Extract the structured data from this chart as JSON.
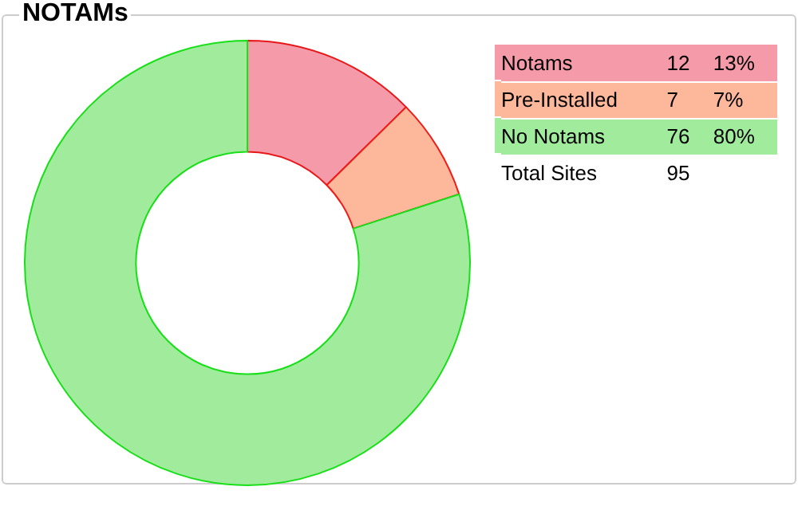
{
  "chart_data": {
    "type": "donut",
    "title": "NOTAMs",
    "categories": [
      "Notams",
      "Pre-Installed",
      "No Notams"
    ],
    "values": [
      12,
      7,
      76
    ],
    "colors": [
      "#f49aa8",
      "#fdb79a",
      "#a1eb9d"
    ],
    "data_labels": true,
    "annotations": [
      {
        "text": "13%",
        "x": "Notams"
      },
      {
        "text": "7%",
        "x": "Pre-Installed"
      },
      {
        "text": "80%",
        "x": "No Notams"
      },
      "Total Sites",
      "95"
    ],
    "legend": "top right"
  }
}
